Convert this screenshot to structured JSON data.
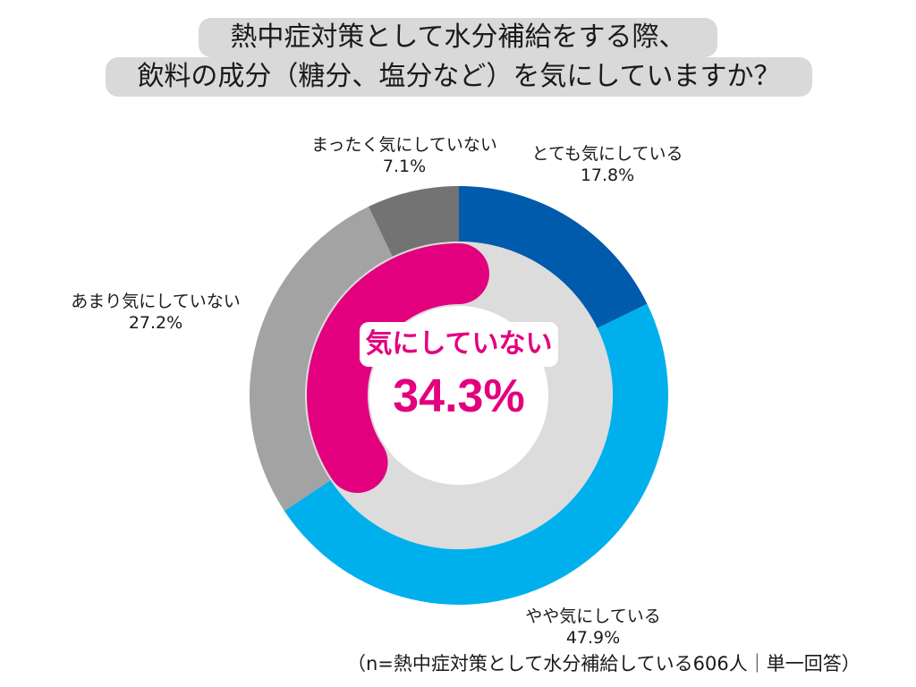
{
  "title": {
    "line1": "熱中症対策として水分補給をする際、",
    "line2": "飲料の成分（糖分、塩分など）を気にしていますか？"
  },
  "chart_data": {
    "type": "pie",
    "style": "donut",
    "series": [
      {
        "label": "とても気にしている",
        "value": 17.8,
        "display": "17.8%",
        "color": "#005bac"
      },
      {
        "label": "やや気にしている",
        "value": 47.9,
        "display": "47.9%",
        "color": "#00b0ec"
      },
      {
        "label": "あまり気にしていない",
        "value": 27.2,
        "display": "27.2%",
        "color": "#a3a3a3"
      },
      {
        "label": "まったく気にしていない",
        "value": 7.1,
        "display": "7.1%",
        "color": "#737373"
      }
    ],
    "highlight": {
      "label": "気にしていない",
      "value": 34.3,
      "display": "34.3%",
      "color": "#e3007f"
    }
  },
  "note": "（n=熱中症対策として水分補給している606人｜単一回答）"
}
